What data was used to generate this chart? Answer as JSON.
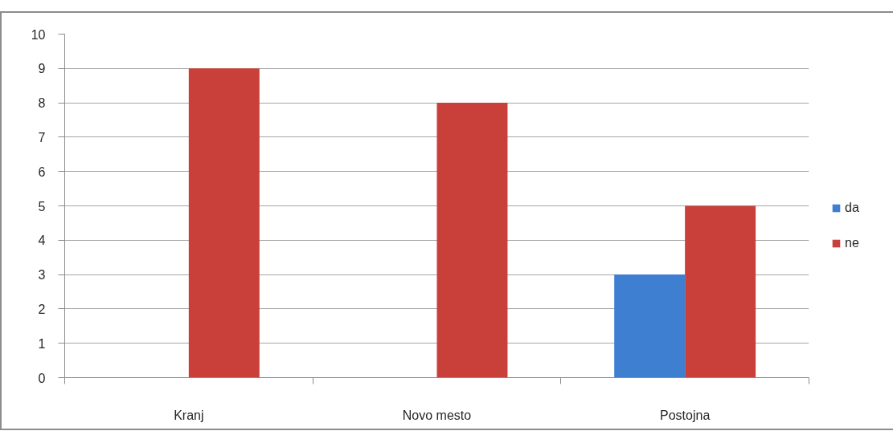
{
  "chart_data": {
    "type": "bar",
    "categories": [
      "Kranj",
      "Novo mesto",
      "Postojna"
    ],
    "series": [
      {
        "name": "da",
        "color": "#3f7fd2",
        "values": [
          null,
          null,
          3
        ]
      },
      {
        "name": "ne",
        "color": "#c9403b",
        "values": [
          9,
          8,
          5
        ]
      }
    ],
    "ylim": [
      0,
      10
    ],
    "yticks": [
      0,
      1,
      2,
      3,
      4,
      5,
      6,
      7,
      8,
      9,
      10
    ],
    "grid": "y",
    "legend": "right"
  }
}
